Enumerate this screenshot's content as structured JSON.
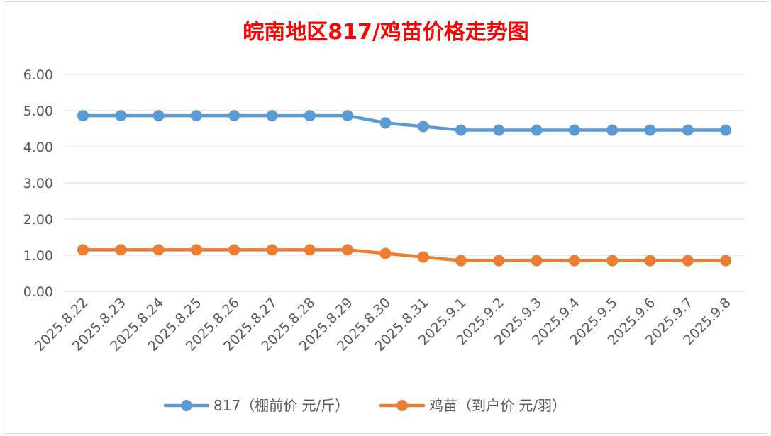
{
  "chart_data": {
    "type": "line",
    "title": "皖南地区817/鸡苗价格走势图",
    "categories": [
      "2025.8.22",
      "2025.8.23",
      "2025.8.24",
      "2025.8.25",
      "2025.8.26",
      "2025.8.27",
      "2025.8.28",
      "2025.8.29",
      "2025.8.30",
      "2025.8.31",
      "2025.9.1",
      "2025.9.2",
      "2025.9.3",
      "2025.9.4",
      "2025.9.5",
      "2025.9.6",
      "2025.9.7",
      "2025.9.8"
    ],
    "y_ticks": [
      "0.00",
      "1.00",
      "2.00",
      "3.00",
      "4.00",
      "5.00",
      "6.00"
    ],
    "ylim": [
      0,
      6
    ],
    "grid": true,
    "legend_position": "bottom",
    "title_color": "#FF0000",
    "series": [
      {
        "name": "817（棚前价 元/斤）",
        "color": "#5B9BD5",
        "values": [
          4.86,
          4.86,
          4.86,
          4.86,
          4.86,
          4.86,
          4.86,
          4.86,
          4.66,
          4.56,
          4.46,
          4.46,
          4.46,
          4.46,
          4.46,
          4.46,
          4.46,
          4.46
        ]
      },
      {
        "name": "鸡苗（到户价 元/羽）",
        "color": "#ED7D31",
        "values": [
          1.15,
          1.15,
          1.15,
          1.15,
          1.15,
          1.15,
          1.15,
          1.15,
          1.05,
          0.95,
          0.85,
          0.85,
          0.85,
          0.85,
          0.85,
          0.85,
          0.85,
          0.85
        ]
      }
    ]
  }
}
